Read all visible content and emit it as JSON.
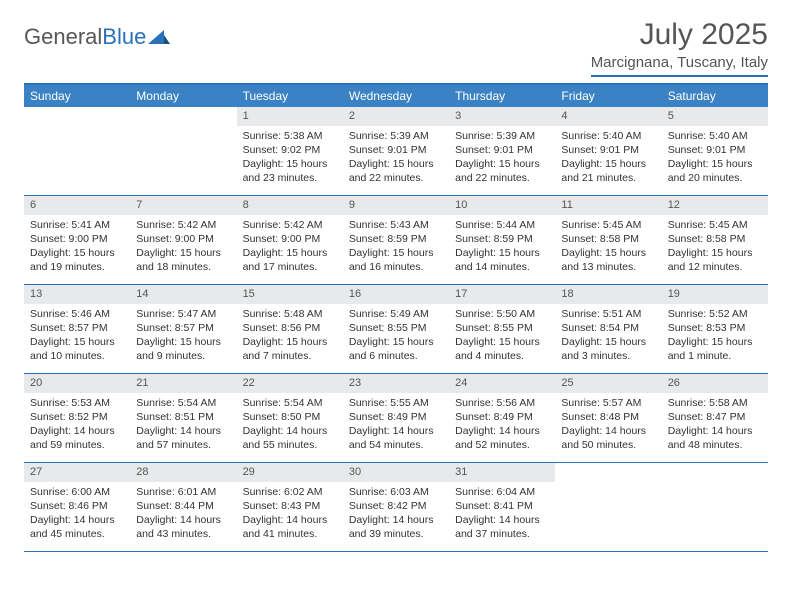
{
  "logo": {
    "prefix": "General",
    "suffix": "Blue"
  },
  "title": "July 2025",
  "location": "Marcignana, Tuscany, Italy",
  "colors": {
    "header_bg": "#3b82c4",
    "border": "#2a71b8",
    "daynum_bg": "#e8e9ea",
    "text": "#333333",
    "muted": "#575757"
  },
  "weekdays": [
    "Sunday",
    "Monday",
    "Tuesday",
    "Wednesday",
    "Thursday",
    "Friday",
    "Saturday"
  ],
  "weeks": [
    [
      null,
      null,
      {
        "n": "1",
        "sunrise": "Sunrise: 5:38 AM",
        "sunset": "Sunset: 9:02 PM",
        "daylight": "Daylight: 15 hours and 23 minutes."
      },
      {
        "n": "2",
        "sunrise": "Sunrise: 5:39 AM",
        "sunset": "Sunset: 9:01 PM",
        "daylight": "Daylight: 15 hours and 22 minutes."
      },
      {
        "n": "3",
        "sunrise": "Sunrise: 5:39 AM",
        "sunset": "Sunset: 9:01 PM",
        "daylight": "Daylight: 15 hours and 22 minutes."
      },
      {
        "n": "4",
        "sunrise": "Sunrise: 5:40 AM",
        "sunset": "Sunset: 9:01 PM",
        "daylight": "Daylight: 15 hours and 21 minutes."
      },
      {
        "n": "5",
        "sunrise": "Sunrise: 5:40 AM",
        "sunset": "Sunset: 9:01 PM",
        "daylight": "Daylight: 15 hours and 20 minutes."
      }
    ],
    [
      {
        "n": "6",
        "sunrise": "Sunrise: 5:41 AM",
        "sunset": "Sunset: 9:00 PM",
        "daylight": "Daylight: 15 hours and 19 minutes."
      },
      {
        "n": "7",
        "sunrise": "Sunrise: 5:42 AM",
        "sunset": "Sunset: 9:00 PM",
        "daylight": "Daylight: 15 hours and 18 minutes."
      },
      {
        "n": "8",
        "sunrise": "Sunrise: 5:42 AM",
        "sunset": "Sunset: 9:00 PM",
        "daylight": "Daylight: 15 hours and 17 minutes."
      },
      {
        "n": "9",
        "sunrise": "Sunrise: 5:43 AM",
        "sunset": "Sunset: 8:59 PM",
        "daylight": "Daylight: 15 hours and 16 minutes."
      },
      {
        "n": "10",
        "sunrise": "Sunrise: 5:44 AM",
        "sunset": "Sunset: 8:59 PM",
        "daylight": "Daylight: 15 hours and 14 minutes."
      },
      {
        "n": "11",
        "sunrise": "Sunrise: 5:45 AM",
        "sunset": "Sunset: 8:58 PM",
        "daylight": "Daylight: 15 hours and 13 minutes."
      },
      {
        "n": "12",
        "sunrise": "Sunrise: 5:45 AM",
        "sunset": "Sunset: 8:58 PM",
        "daylight": "Daylight: 15 hours and 12 minutes."
      }
    ],
    [
      {
        "n": "13",
        "sunrise": "Sunrise: 5:46 AM",
        "sunset": "Sunset: 8:57 PM",
        "daylight": "Daylight: 15 hours and 10 minutes."
      },
      {
        "n": "14",
        "sunrise": "Sunrise: 5:47 AM",
        "sunset": "Sunset: 8:57 PM",
        "daylight": "Daylight: 15 hours and 9 minutes."
      },
      {
        "n": "15",
        "sunrise": "Sunrise: 5:48 AM",
        "sunset": "Sunset: 8:56 PM",
        "daylight": "Daylight: 15 hours and 7 minutes."
      },
      {
        "n": "16",
        "sunrise": "Sunrise: 5:49 AM",
        "sunset": "Sunset: 8:55 PM",
        "daylight": "Daylight: 15 hours and 6 minutes."
      },
      {
        "n": "17",
        "sunrise": "Sunrise: 5:50 AM",
        "sunset": "Sunset: 8:55 PM",
        "daylight": "Daylight: 15 hours and 4 minutes."
      },
      {
        "n": "18",
        "sunrise": "Sunrise: 5:51 AM",
        "sunset": "Sunset: 8:54 PM",
        "daylight": "Daylight: 15 hours and 3 minutes."
      },
      {
        "n": "19",
        "sunrise": "Sunrise: 5:52 AM",
        "sunset": "Sunset: 8:53 PM",
        "daylight": "Daylight: 15 hours and 1 minute."
      }
    ],
    [
      {
        "n": "20",
        "sunrise": "Sunrise: 5:53 AM",
        "sunset": "Sunset: 8:52 PM",
        "daylight": "Daylight: 14 hours and 59 minutes."
      },
      {
        "n": "21",
        "sunrise": "Sunrise: 5:54 AM",
        "sunset": "Sunset: 8:51 PM",
        "daylight": "Daylight: 14 hours and 57 minutes."
      },
      {
        "n": "22",
        "sunrise": "Sunrise: 5:54 AM",
        "sunset": "Sunset: 8:50 PM",
        "daylight": "Daylight: 14 hours and 55 minutes."
      },
      {
        "n": "23",
        "sunrise": "Sunrise: 5:55 AM",
        "sunset": "Sunset: 8:49 PM",
        "daylight": "Daylight: 14 hours and 54 minutes."
      },
      {
        "n": "24",
        "sunrise": "Sunrise: 5:56 AM",
        "sunset": "Sunset: 8:49 PM",
        "daylight": "Daylight: 14 hours and 52 minutes."
      },
      {
        "n": "25",
        "sunrise": "Sunrise: 5:57 AM",
        "sunset": "Sunset: 8:48 PM",
        "daylight": "Daylight: 14 hours and 50 minutes."
      },
      {
        "n": "26",
        "sunrise": "Sunrise: 5:58 AM",
        "sunset": "Sunset: 8:47 PM",
        "daylight": "Daylight: 14 hours and 48 minutes."
      }
    ],
    [
      {
        "n": "27",
        "sunrise": "Sunrise: 6:00 AM",
        "sunset": "Sunset: 8:46 PM",
        "daylight": "Daylight: 14 hours and 45 minutes."
      },
      {
        "n": "28",
        "sunrise": "Sunrise: 6:01 AM",
        "sunset": "Sunset: 8:44 PM",
        "daylight": "Daylight: 14 hours and 43 minutes."
      },
      {
        "n": "29",
        "sunrise": "Sunrise: 6:02 AM",
        "sunset": "Sunset: 8:43 PM",
        "daylight": "Daylight: 14 hours and 41 minutes."
      },
      {
        "n": "30",
        "sunrise": "Sunrise: 6:03 AM",
        "sunset": "Sunset: 8:42 PM",
        "daylight": "Daylight: 14 hours and 39 minutes."
      },
      {
        "n": "31",
        "sunrise": "Sunrise: 6:04 AM",
        "sunset": "Sunset: 8:41 PM",
        "daylight": "Daylight: 14 hours and 37 minutes."
      },
      null,
      null
    ]
  ]
}
